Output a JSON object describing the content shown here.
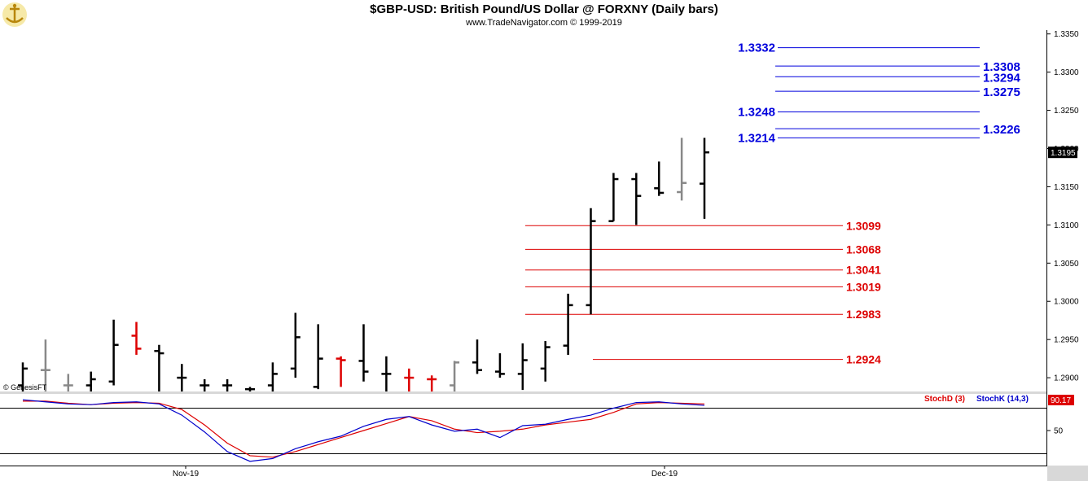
{
  "header": {
    "title": "$GBP-USD:  British Pound/US Dollar @ FORXNY  (Daily bars)",
    "subtitle": "www.TradeNavigator.com © 1999-2019"
  },
  "watermark": "© GenesisFT",
  "colors": {
    "up_bar": "#000000",
    "gray_bar": "#888888",
    "red_bar": "#dd0000",
    "blue_level": "#0000dd",
    "red_level": "#dd0000",
    "stoch_d": "#dd0000",
    "stoch_k": "#0000cc",
    "panel_bg": "#ffffff",
    "frame_bg": "#d8d8d8",
    "last_price_bg": "#000000"
  },
  "chart_data": [
    {
      "type": "bar",
      "subtype": "ohlc",
      "price_axis": {
        "ticks": [
          "1.3350",
          "1.3300",
          "1.3250",
          "1.3200",
          "1.3150",
          "1.3100",
          "1.3050",
          "1.3000",
          "1.2950",
          "1.2900"
        ],
        "range": [
          1.2882,
          1.3355
        ]
      },
      "x_labels": [
        "Nov-19",
        "Dec-19"
      ],
      "last_price": "1.3195",
      "bars": [
        {
          "high": 1.292,
          "low": 1.2882,
          "open": 1.289,
          "close": 1.2912,
          "color": "black"
        },
        {
          "high": 1.295,
          "low": 1.2882,
          "open": 1.291,
          "close": 1.291,
          "color": "gray"
        },
        {
          "high": 1.2905,
          "low": 1.2882,
          "open": 1.289,
          "close": 1.289,
          "color": "gray"
        },
        {
          "high": 1.2908,
          "low": 1.2882,
          "open": 1.289,
          "close": 1.2898,
          "color": "black"
        },
        {
          "high": 1.2976,
          "low": 1.289,
          "open": 1.2895,
          "close": 1.2943,
          "color": "black"
        },
        {
          "high": 1.2973,
          "low": 1.293,
          "open": 1.2955,
          "close": 1.2938,
          "color": "red"
        },
        {
          "high": 1.2943,
          "low": 1.2882,
          "open": 1.2935,
          "close": 1.2932,
          "color": "black"
        },
        {
          "high": 1.2918,
          "low": 1.2882,
          "open": 1.29,
          "close": 1.29,
          "color": "black"
        },
        {
          "high": 1.2898,
          "low": 1.2882,
          "open": 1.289,
          "close": 1.289,
          "color": "black"
        },
        {
          "high": 1.2898,
          "low": 1.2882,
          "open": 1.289,
          "close": 1.289,
          "color": "black"
        },
        {
          "high": 1.2888,
          "low": 1.2882,
          "open": 1.2885,
          "close": 1.2885,
          "color": "black"
        },
        {
          "high": 1.292,
          "low": 1.2882,
          "open": 1.289,
          "close": 1.2905,
          "color": "black"
        },
        {
          "high": 1.2985,
          "low": 1.29,
          "open": 1.2912,
          "close": 1.2953,
          "color": "black"
        },
        {
          "high": 1.297,
          "low": 1.2885,
          "open": 1.2888,
          "close": 1.2925,
          "color": "black"
        },
        {
          "high": 1.2928,
          "low": 1.2888,
          "open": 1.2925,
          "close": 1.2923,
          "color": "red"
        },
        {
          "high": 1.297,
          "low": 1.2895,
          "open": 1.2922,
          "close": 1.2908,
          "color": "black"
        },
        {
          "high": 1.2928,
          "low": 1.2882,
          "open": 1.2905,
          "close": 1.2905,
          "color": "black"
        },
        {
          "high": 1.2912,
          "low": 1.2882,
          "open": 1.29,
          "close": 1.29,
          "color": "red"
        },
        {
          "high": 1.2903,
          "low": 1.2882,
          "open": 1.2898,
          "close": 1.2898,
          "color": "red"
        },
        {
          "high": 1.2922,
          "low": 1.2882,
          "open": 1.289,
          "close": 1.292,
          "color": "gray"
        },
        {
          "high": 1.295,
          "low": 1.2905,
          "open": 1.292,
          "close": 1.291,
          "color": "black"
        },
        {
          "high": 1.2932,
          "low": 1.29,
          "open": 1.2908,
          "close": 1.2905,
          "color": "black"
        },
        {
          "high": 1.2945,
          "low": 1.2884,
          "open": 1.2905,
          "close": 1.2923,
          "color": "black"
        },
        {
          "high": 1.2948,
          "low": 1.2895,
          "open": 1.2912,
          "close": 1.294,
          "color": "black"
        },
        {
          "high": 1.301,
          "low": 1.293,
          "open": 1.2942,
          "close": 1.2995,
          "color": "black"
        },
        {
          "high": 1.3122,
          "low": 1.2983,
          "open": 1.2995,
          "close": 1.3105,
          "color": "black"
        },
        {
          "high": 1.3168,
          "low": 1.3105,
          "open": 1.3105,
          "close": 1.316,
          "color": "black"
        },
        {
          "high": 1.3168,
          "low": 1.31,
          "open": 1.316,
          "close": 1.3138,
          "color": "black"
        },
        {
          "high": 1.3183,
          "low": 1.3138,
          "open": 1.3148,
          "close": 1.3142,
          "color": "black"
        },
        {
          "high": 1.3214,
          "low": 1.3132,
          "open": 1.3143,
          "close": 1.3155,
          "color": "gray"
        },
        {
          "high": 1.3214,
          "low": 1.3108,
          "open": 1.3154,
          "close": 1.3195,
          "color": "black"
        }
      ],
      "levels_blue": [
        "1.3332",
        "1.3308",
        "1.3294",
        "1.3275",
        "1.3248",
        "1.3226",
        "1.3214"
      ],
      "levels_red": [
        "1.3099",
        "1.3068",
        "1.3041",
        "1.3019",
        "1.2983",
        "1.2924"
      ]
    },
    {
      "type": "line",
      "legend": [
        "StochD (3)",
        "StochK (14,3)"
      ],
      "y_ticks": [
        "50"
      ],
      "top_value_label": "90.17",
      "y_range": [
        0,
        100
      ],
      "series": [
        {
          "name": "StochK (14,3)",
          "values": [
            94,
            91,
            88,
            87,
            90,
            91,
            88,
            72,
            48,
            20,
            6,
            10,
            24,
            34,
            42,
            56,
            66,
            70,
            58,
            49,
            52,
            40,
            57,
            59,
            66,
            72,
            82,
            90,
            91,
            88,
            86
          ]
        },
        {
          "name": "StochD (3)",
          "values": [
            92,
            92,
            89,
            87,
            89,
            90,
            89,
            80,
            58,
            32,
            14,
            12,
            20,
            30,
            40,
            50,
            60,
            70,
            64,
            52,
            47,
            49,
            52,
            58,
            62,
            66,
            76,
            88,
            90,
            89,
            88
          ]
        }
      ]
    }
  ]
}
